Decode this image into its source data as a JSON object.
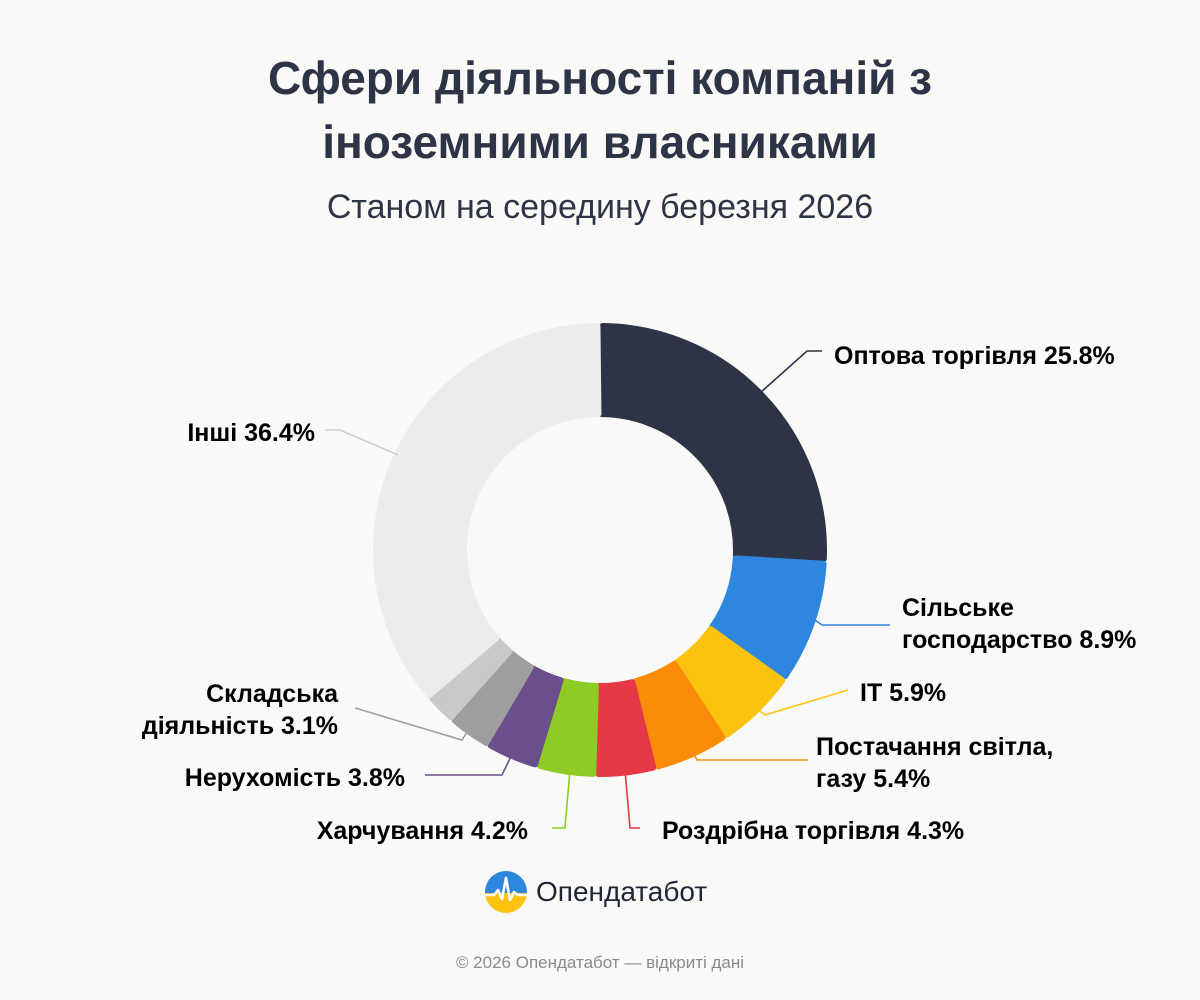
{
  "chart_data": {
    "type": "pie",
    "title": "Сфери діяльності компаній з іноземними власниками",
    "title_lines": [
      "Сфери діяльності компаній з",
      "іноземними власниками"
    ],
    "subtitle": "Станом на середину березня 2026",
    "donut": true,
    "slices": [
      {
        "label_lines": [
          "Оптова торгівля 25.8%"
        ],
        "value": 25.8,
        "color": "#2d3446"
      },
      {
        "label_lines": [
          "Сільське",
          "господарство 8.9%"
        ],
        "value": 8.9,
        "color": "#2e86de"
      },
      {
        "label_lines": [
          "IT 5.9%"
        ],
        "value": 5.9,
        "color": "#fbc30f"
      },
      {
        "label_lines": [
          "Постачання світла,",
          "газу 5.4%"
        ],
        "value": 5.4,
        "color": "#fb8c0a"
      },
      {
        "label_lines": [
          "Роздрібна торгівля 4.3%"
        ],
        "value": 4.3,
        "color": "#e63946"
      },
      {
        "label_lines": [
          "Харчування 4.2%"
        ],
        "value": 4.2,
        "color": "#8ecb24"
      },
      {
        "label_lines": [
          "Нерухомість 3.8%"
        ],
        "value": 3.8,
        "color": "#6b4e8c"
      },
      {
        "label_lines": [
          "Складська",
          "діяльність 3.1%"
        ],
        "value": 3.1,
        "color": "#9e9e9e"
      },
      {
        "label_lines": [],
        "value": 2.2,
        "color": "#c9c9c9"
      },
      {
        "label_lines": [
          "Інші 36.4%"
        ],
        "value": 36.4,
        "color": "#ececeb"
      }
    ]
  },
  "brand": {
    "name": "Опендатабот",
    "logo_icon": "opendatabot-logo-icon"
  },
  "footer": {
    "text": "© 2026 Опендатабот — відкриті дані"
  }
}
